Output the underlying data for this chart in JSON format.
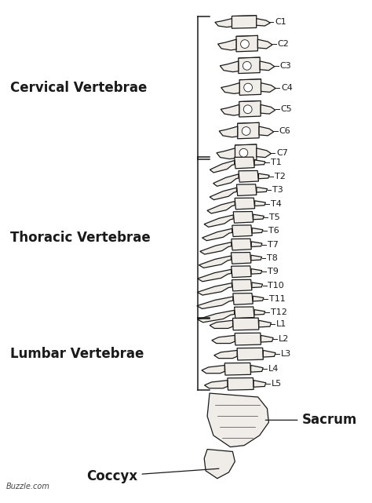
{
  "bg_color": "#ffffff",
  "spine_color": "#1a1a1a",
  "fill_color": "#f0ede8",
  "fill_color2": "#e8e4de",
  "watermark": "Buzzle.com",
  "cervical_label": "Cervical Vertebrae",
  "thoracic_label": "Thoracic Vertebrae",
  "lumbar_label": "Lumbar Vertebrae",
  "sacrum_label": "Sacrum",
  "coccyx_label": "Coccyx",
  "cervical_vertebrae": [
    "C1",
    "C2",
    "C3",
    "C4",
    "C5",
    "C6",
    "C7"
  ],
  "thoracic_vertebrae": [
    "T1",
    "T2",
    "T3",
    "T4",
    "T5",
    "T6",
    "T7",
    "T8",
    "T9",
    "T10",
    "T11",
    "T12"
  ],
  "lumbar_vertebrae": [
    "L1",
    "L2",
    "L3",
    "L4",
    "L5"
  ],
  "section_fontsize": 12,
  "vertebra_label_fontsize": 8,
  "annotation_fontsize": 12
}
